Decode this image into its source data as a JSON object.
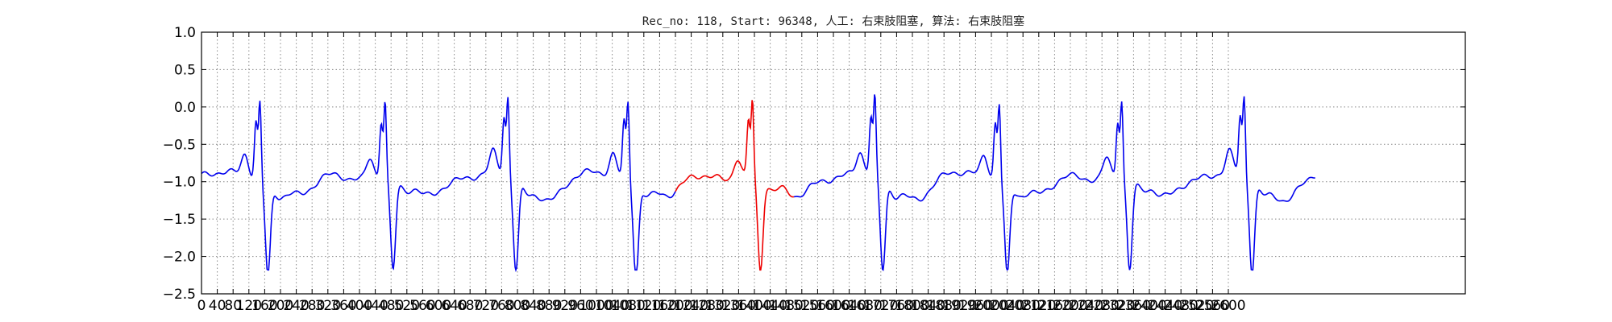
{
  "chart_data": {
    "type": "line",
    "title": "Rec_no: 118, Start: 96348, 人工: 右束肢阻塞, 算法: 右束肢阻塞",
    "xlabel": "",
    "ylabel": "",
    "xlim": [
      0,
      3200
    ],
    "ylim": [
      -2.5,
      1.0
    ],
    "grid": true,
    "y_ticks": [
      1.0,
      0.5,
      0.0,
      -0.5,
      -1.0,
      -1.5,
      -2.0,
      -2.5
    ],
    "y_tick_labels": [
      "1.0",
      "0.5",
      "0.0",
      "−0.5",
      "−1.0",
      "−1.5",
      "−2.0",
      "−2.5"
    ],
    "x_tick_labels": [
      "0",
      "40",
      "80",
      "120",
      "160",
      "200",
      "240",
      "280",
      "320",
      "360",
      "400",
      "440",
      "480",
      "520",
      "560",
      "600",
      "640",
      "680",
      "720",
      "760",
      "800",
      "840",
      "880",
      "920",
      "960",
      "1000",
      "1040",
      "1080",
      "1120",
      "1160",
      "1200",
      "1240",
      "1280",
      "1320",
      "1360",
      "1400",
      "1440",
      "1480",
      "1520",
      "1560",
      "1600",
      "1640",
      "1680",
      "1720",
      "1760",
      "1800",
      "1840",
      "1880",
      "1920",
      "1960",
      "2000",
      "2040",
      "2080",
      "2120",
      "2160",
      "2200",
      "2240",
      "2280",
      "2320",
      "2360",
      "2400",
      "2440",
      "2480",
      "2520",
      "2560",
      "2600"
    ],
    "highlight_range": [
      1200,
      1500
    ],
    "beats": [
      148,
      465,
      776,
      1080,
      1395,
      1705,
      2020,
      2330,
      2640
    ],
    "series": [
      {
        "x_start": 0,
        "x_end": 2820,
        "color": "#0000ee",
        "highlight_color": "#ee0000"
      }
    ]
  }
}
